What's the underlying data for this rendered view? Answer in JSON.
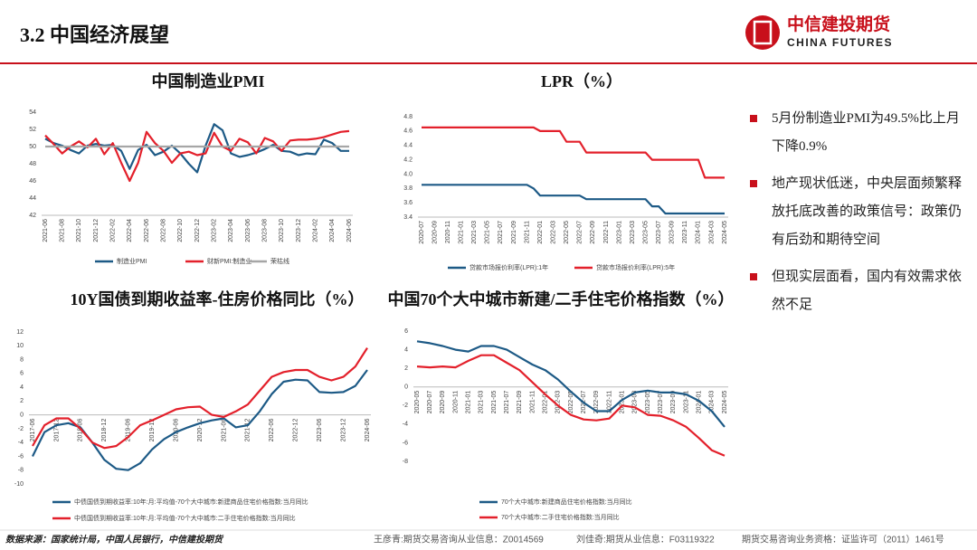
{
  "header": {
    "title": "3.2 中国经济展望",
    "logo_cn": "中信建投期货",
    "logo_en": "CHINA FUTURES"
  },
  "charts": [
    {
      "type": "line",
      "title": "中国制造业PMI",
      "categories": [
        "2021-06",
        null,
        "2021-08",
        null,
        "2021-10",
        null,
        "2021-12",
        null,
        "2022-02",
        null,
        "2022-04",
        null,
        "2022-06",
        null,
        "2022-08",
        null,
        "2022-10",
        null,
        "2022-12",
        null,
        "2023-02",
        null,
        "2023-04",
        null,
        "2023-06",
        null,
        "2023-08",
        null,
        "2023-10",
        null,
        "2023-12",
        null,
        "2024-02",
        null,
        "2024-04",
        null,
        "2024-06"
      ],
      "series": [
        {
          "name": "制造业PMI",
          "color": "#1d5a86",
          "values": [
            50.9,
            50.4,
            50.1,
            49.6,
            49.2,
            50.1,
            50.3,
            50.1,
            50.2,
            49.5,
            47.4,
            49.6,
            50.2,
            49.0,
            49.4,
            50.1,
            49.2,
            48.0,
            47.0,
            50.1,
            52.6,
            51.9,
            49.2,
            48.8,
            49.0,
            49.3,
            49.7,
            50.2,
            49.5,
            49.4,
            49.0,
            49.2,
            49.1,
            50.8,
            50.4,
            49.5,
            49.5
          ]
        },
        {
          "name": "财新PMI:制造业",
          "color": "#e3202b",
          "values": [
            51.3,
            50.3,
            49.2,
            50.0,
            50.6,
            49.9,
            50.9,
            49.1,
            50.4,
            48.1,
            46.0,
            48.1,
            51.7,
            50.4,
            49.5,
            48.1,
            49.2,
            49.4,
            49.0,
            49.2,
            51.6,
            50.0,
            49.5,
            50.9,
            50.5,
            49.2,
            51.0,
            50.6,
            49.5,
            50.7,
            50.8,
            50.8,
            50.9,
            51.1,
            51.4,
            51.7,
            51.8
          ]
        },
        {
          "name": "荣枯线",
          "color": "#a6a6a6",
          "values": [
            50,
            50,
            50,
            50,
            50,
            50,
            50,
            50,
            50,
            50,
            50,
            50,
            50,
            50,
            50,
            50,
            50,
            50,
            50,
            50,
            50,
            50,
            50,
            50,
            50,
            50,
            50,
            50,
            50,
            50,
            50,
            50,
            50,
            50,
            50,
            50,
            50
          ]
        }
      ],
      "ylim": [
        42,
        54
      ],
      "yticks": [
        42,
        44,
        46,
        48,
        50,
        52,
        54
      ]
    },
    {
      "type": "line",
      "title": "LPR（%）",
      "categories": [
        "2020-07",
        null,
        "2020-09",
        null,
        "2020-11",
        null,
        "2021-01",
        null,
        "2021-03",
        null,
        "2021-05",
        null,
        "2021-07",
        null,
        "2021-09",
        null,
        "2021-11",
        null,
        "2022-01",
        null,
        "2022-03",
        null,
        "2022-05",
        null,
        "2022-07",
        null,
        "2022-09",
        null,
        "2022-11",
        null,
        "2023-01",
        null,
        "2023-03",
        null,
        "2023-05",
        null,
        "2023-07",
        null,
        "2023-09",
        null,
        "2023-11",
        null,
        "2024-01",
        null,
        "2024-03",
        null,
        "2024-05"
      ],
      "series": [
        {
          "name": "贷款市场报价利率(LPR):1年",
          "color": "#1d5a86",
          "values": [
            3.85,
            3.85,
            3.85,
            3.85,
            3.85,
            3.85,
            3.85,
            3.85,
            3.85,
            3.85,
            3.85,
            3.85,
            3.85,
            3.85,
            3.85,
            3.85,
            3.85,
            3.8,
            3.7,
            3.7,
            3.7,
            3.7,
            3.7,
            3.7,
            3.7,
            3.65,
            3.65,
            3.65,
            3.65,
            3.65,
            3.65,
            3.65,
            3.65,
            3.65,
            3.65,
            3.55,
            3.55,
            3.45,
            3.45,
            3.45,
            3.45,
            3.45,
            3.45,
            3.45,
            3.45,
            3.45,
            3.45
          ]
        },
        {
          "name": "贷款市场报价利率(LPR):5年",
          "color": "#e3202b",
          "values": [
            4.65,
            4.65,
            4.65,
            4.65,
            4.65,
            4.65,
            4.65,
            4.65,
            4.65,
            4.65,
            4.65,
            4.65,
            4.65,
            4.65,
            4.65,
            4.65,
            4.65,
            4.65,
            4.6,
            4.6,
            4.6,
            4.6,
            4.45,
            4.45,
            4.45,
            4.3,
            4.3,
            4.3,
            4.3,
            4.3,
            4.3,
            4.3,
            4.3,
            4.3,
            4.3,
            4.2,
            4.2,
            4.2,
            4.2,
            4.2,
            4.2,
            4.2,
            4.2,
            3.95,
            3.95,
            3.95,
            3.95
          ]
        }
      ],
      "ylim": [
        3.4,
        4.8
      ],
      "yticks": [
        3.4,
        3.6,
        3.8,
        {
          "value": 4,
          "label": "4.0"
        },
        4.2,
        4.4,
        4.6,
        4.8
      ]
    },
    {
      "type": "line",
      "title": "10Y国债到期收益率-住房价格同比（%）",
      "categories": [
        "2017-06",
        null,
        "2017-12",
        null,
        "2018-06",
        null,
        "2018-12",
        null,
        "2019-06",
        null,
        "2019-12",
        null,
        "2020-06",
        null,
        "2020-12",
        null,
        "2021-06",
        null,
        "2021-12",
        null,
        "2022-06",
        null,
        "2022-12",
        null,
        "2023-06",
        null,
        "2023-12",
        null,
        "2024-06"
      ],
      "series": [
        {
          "name": "中债国债到期收益率:10年:月:平均值-70个大中城市:新建商品住宅价格指数:当月同比",
          "color": "#1d5a86",
          "values": [
            -6,
            -2.5,
            -1.5,
            -1.2,
            -1.8,
            -4,
            -6.5,
            -7.8,
            -8,
            -7,
            -5,
            -3.5,
            -2.5,
            -1.8,
            -1.2,
            -0.8,
            -0.5,
            -1.8,
            -1.5,
            0.5,
            3,
            4.8,
            5.1,
            5,
            3.3,
            3.2,
            3.3,
            4.2,
            6.5
          ]
        },
        {
          "name": "中债国债到期收益率:10年:月:平均值-70个大中城市:二手住宅价格指数:当月同比",
          "color": "#e3202b",
          "values": [
            -4.5,
            -1.5,
            -0.5,
            -0.5,
            -2,
            -4,
            -4.8,
            -4.5,
            -3.2,
            -1.5,
            -0.8,
            0,
            0.8,
            1.1,
            1.2,
            0,
            -0.3,
            0.5,
            1.5,
            3.5,
            5.5,
            6.2,
            6.5,
            6.5,
            5.5,
            5,
            5.5,
            7,
            9.7
          ]
        }
      ],
      "ylim": [
        -10,
        12
      ],
      "yticks": [
        -10,
        -8,
        -6,
        -4,
        -2,
        0,
        2,
        4,
        6,
        8,
        10,
        12
      ]
    },
    {
      "type": "line",
      "title": "中国70个大中城市新建/二手住宅价格指数（%）",
      "categories": [
        "2020-05",
        "2020-07",
        "2020-09",
        "2020-11",
        "2021-01",
        "2021-03",
        "2021-05",
        "2021-07",
        "2021-09",
        "2021-11",
        "2022-01",
        "2022-03",
        "2022-05",
        "2022-07",
        "2022-09",
        "2022-11",
        "2023-01",
        "2023-03",
        "2023-05",
        "2023-07",
        "2023-09",
        "2023-11",
        "2024-01",
        "2024-03",
        "2024-05"
      ],
      "series": [
        {
          "name": "70个大中城市:新建商品住宅价格指数:当月同比",
          "color": "#1d5a86",
          "values": [
            4.9,
            4.7,
            4.4,
            4.0,
            3.8,
            4.4,
            4.4,
            4.0,
            3.2,
            2.4,
            1.8,
            0.8,
            -0.5,
            -1.7,
            -2.6,
            -2.6,
            -1.4,
            -0.6,
            -0.4,
            -0.6,
            -0.6,
            -0.8,
            -1.5,
            -2.6,
            -4.3
          ]
        },
        {
          "name": "70个大中城市:二手住宅价格指数:当月同比",
          "color": "#e3202b",
          "values": [
            2.2,
            2.1,
            2.2,
            2.1,
            2.8,
            3.4,
            3.4,
            2.6,
            1.8,
            0.5,
            -0.8,
            -2.0,
            -3.0,
            -3.5,
            -3.6,
            -3.4,
            -2.0,
            -2.2,
            -3.0,
            -3.1,
            -3.6,
            -4.3,
            -5.5,
            -6.8,
            -7.4
          ]
        }
      ],
      "ylim": [
        -8,
        6
      ],
      "yticks": [
        -8,
        -6,
        -4,
        -2,
        0,
        2,
        4,
        6
      ]
    }
  ],
  "bullets": [
    "5月份制造业PMI为49.5%比上月下降0.9%",
    "地产现状低迷，中央层面频繁释放托底改善的政策信号：政策仍有后劲和期待空间",
    "但现实层面看，国内有效需求依然不足"
  ],
  "footer": {
    "source": "数据来源：国家统计局，中国人民银行，中信建投期货",
    "analyst1": "王彦青:期货交易咨询从业信息：Z0014569",
    "analyst2": "刘佳奇:期货从业信息：F03119322",
    "license": "期货交易咨询业务资格：证监许可（2011）1461号"
  }
}
